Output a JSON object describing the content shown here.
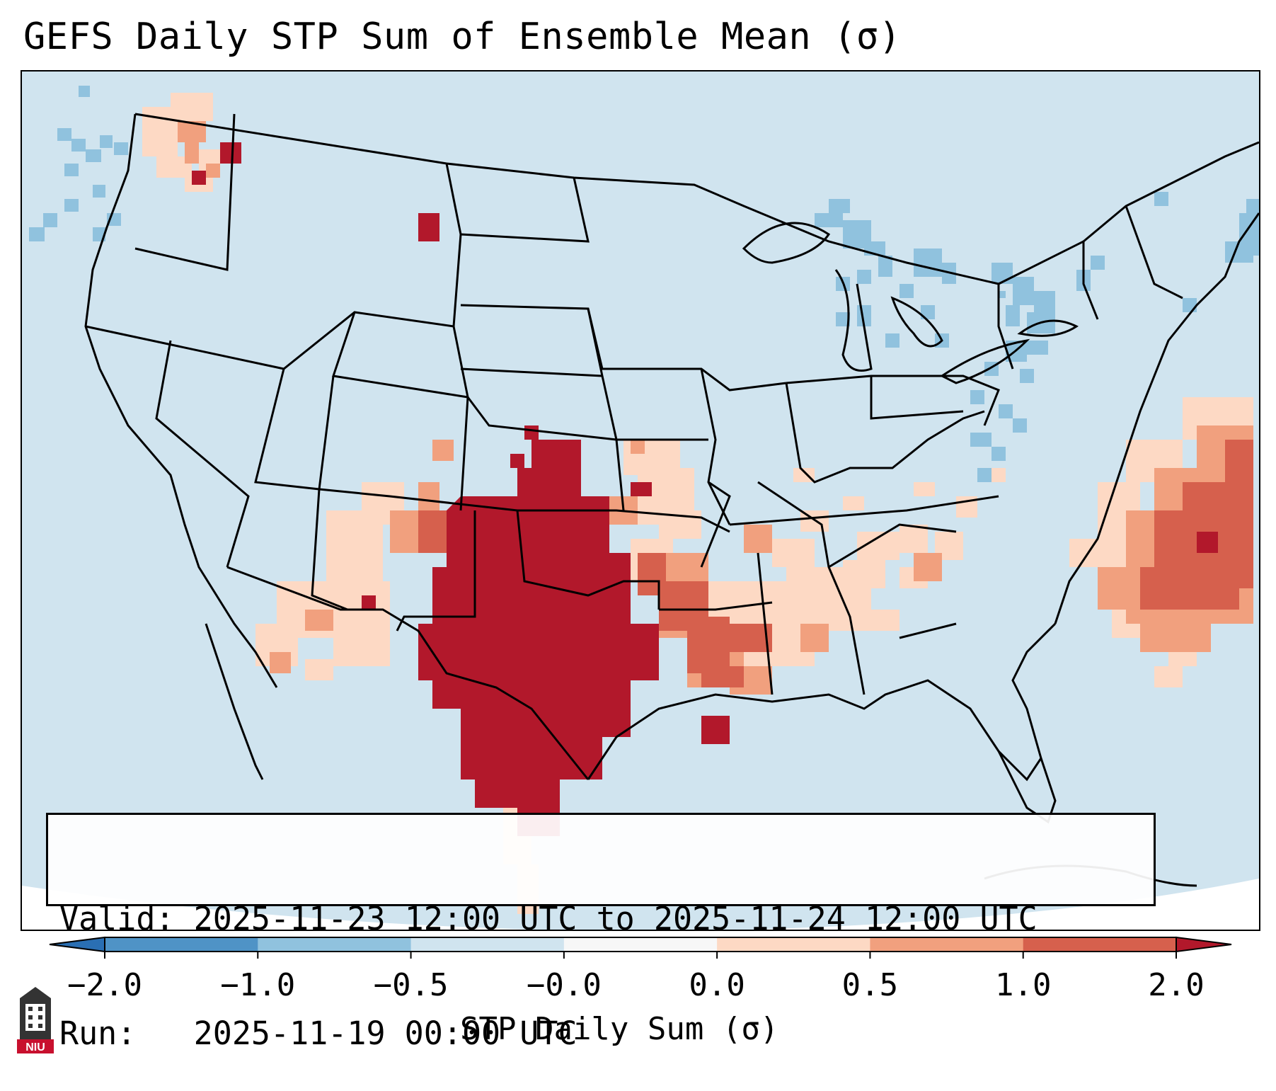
{
  "title": "GEFS Daily STP Sum of Ensemble Mean (σ)",
  "info": {
    "valid_label": "Valid:",
    "valid_value": "2025-11-23 12:00 UTC to 2025-11-24 12:00 UTC",
    "run_label": "Run:",
    "run_value": "2025-11-19 00:00 UTC"
  },
  "colorbar": {
    "label": "STP Daily Sum (σ)",
    "ticks": [
      "−2.0",
      "−1.0",
      "−0.5",
      "−0.0",
      "0.0",
      "0.5",
      "1.0",
      "2.0"
    ],
    "bins": [
      {
        "range": "< -2.0",
        "color": "#2a6fb3"
      },
      {
        "range": "-2.0 to -1.0",
        "color": "#4f93c6"
      },
      {
        "range": "-1.0 to -0.5",
        "color": "#90c2de"
      },
      {
        "range": "-0.5 to -0.0",
        "color": "#d0e4ef"
      },
      {
        "range": "-0.0 to 0.0",
        "color": "#f7f7f7"
      },
      {
        "range": "0.0 to 0.5",
        "color": "#fdd9c4"
      },
      {
        "range": "0.5 to 1.0",
        "color": "#f1a07e"
      },
      {
        "range": "1.0 to 2.0",
        "color": "#d6604d"
      },
      {
        "range": "> 2.0",
        "color": "#b2182b"
      }
    ]
  },
  "map": {
    "background_color": "#d0e4ef",
    "highlights": [
      {
        "region": "Southern Plains / Texas / Oklahoma",
        "category": "> 2.0"
      },
      {
        "region": "Western Atlantic offshore",
        "category": "1.0 to 2.0"
      },
      {
        "region": "Gulf Coast / Louisiana",
        "category": "0.5 to 1.0"
      },
      {
        "region": "Pacific Northwest",
        "category": "0.0 to 0.5"
      },
      {
        "region": "Great Lakes / Northeast",
        "category": "-1.0 to -0.5"
      }
    ]
  },
  "logo_text": "NIU"
}
